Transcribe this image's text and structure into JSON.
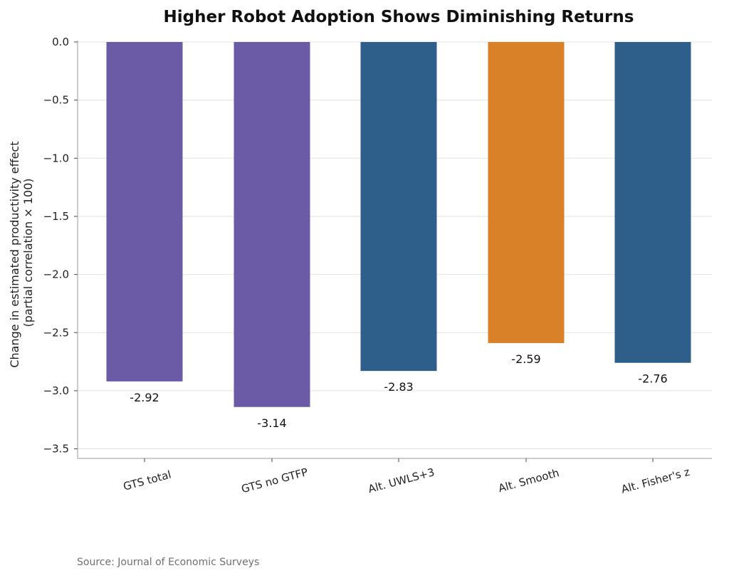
{
  "chart_data": {
    "type": "bar",
    "title": "Higher Robot Adoption Shows Diminishing Returns",
    "ylabel_lines": [
      "Change in estimated productivity effect",
      "(partial correlation × 100)"
    ],
    "xlabel": "",
    "categories": [
      "GTS total",
      "GTS no GTFP",
      "Alt. UWLS+3",
      "Alt. Smooth",
      "Alt. Fisher's z"
    ],
    "values": [
      -2.92,
      -3.14,
      -2.83,
      -2.59,
      -2.76
    ],
    "value_labels": [
      "-2.92",
      "-3.14",
      "-2.83",
      "-2.59",
      "-2.76"
    ],
    "colors": [
      "#6b5aa6",
      "#6b5aa6",
      "#2e5e8a",
      "#d98128",
      "#2e5e8a"
    ],
    "ylim": [
      -3.6,
      0.0
    ],
    "yticks": [
      0.0,
      -0.5,
      -1.0,
      -1.5,
      -2.0,
      -2.5,
      -3.0,
      -3.5
    ],
    "ytick_labels": [
      "0.0",
      "−0.5",
      "−1.0",
      "−1.5",
      "−2.0",
      "−2.5",
      "−3.0",
      "−3.5"
    ],
    "grid": true,
    "source": "Source: Journal of Economic Surveys"
  }
}
